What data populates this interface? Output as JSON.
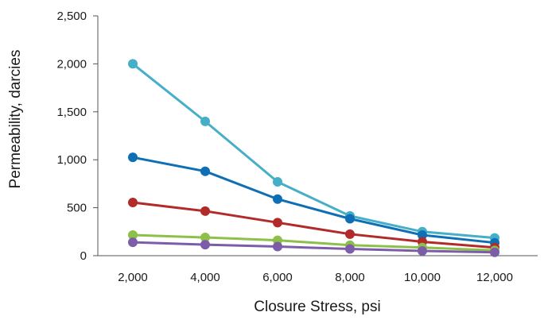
{
  "chart_data": {
    "type": "line",
    "title": "",
    "xlabel": "Closure Stress, psi",
    "ylabel": "Permeability, darcies",
    "x": [
      2000,
      4000,
      6000,
      8000,
      10000,
      12000
    ],
    "x_tick_labels": [
      "2,000",
      "4,000",
      "6,000",
      "8,000",
      "10,000",
      "12,000"
    ],
    "ylim": [
      0,
      2500
    ],
    "y_ticks": [
      0,
      500,
      1000,
      1500,
      2000,
      2500
    ],
    "y_tick_labels": [
      "0",
      "500",
      "1,000",
      "1,500",
      "2,000",
      "2,500"
    ],
    "grid": false,
    "legend": "none",
    "series": [
      {
        "color": "#46afc8",
        "values": [
          2000,
          1400,
          770,
          415,
          250,
          185
        ]
      },
      {
        "color": "#0e6fb5",
        "values": [
          1025,
          880,
          590,
          385,
          215,
          135
        ]
      },
      {
        "color": "#b22a2a",
        "values": [
          555,
          465,
          345,
          225,
          145,
          85
        ]
      },
      {
        "color": "#8dc04a",
        "values": [
          215,
          190,
          160,
          110,
          85,
          55
        ]
      },
      {
        "color": "#7c5ea8",
        "values": [
          140,
          115,
          95,
          70,
          50,
          35
        ]
      }
    ]
  }
}
